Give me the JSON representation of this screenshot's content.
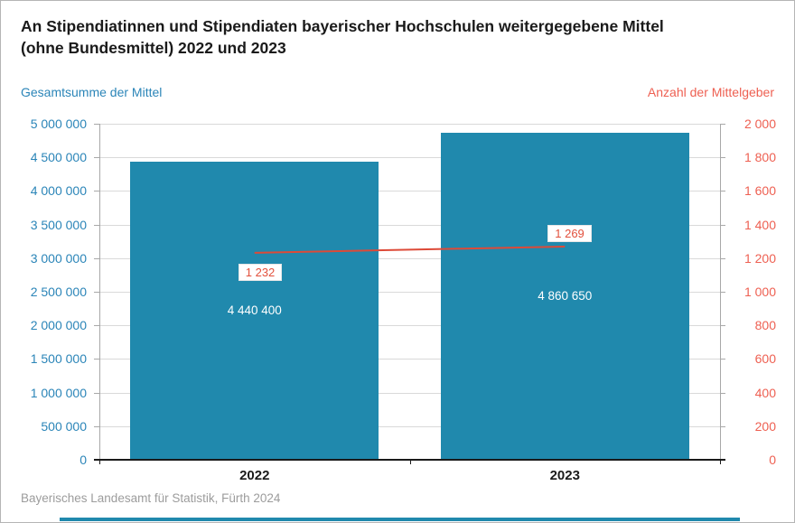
{
  "chart_data": {
    "type": "bar+line",
    "title": "An Stipendiatinnen und Stipendiaten bayerischer Hochschulen weitergegebene Mittel (ohne Bundesmittel) 2022 und 2023",
    "title_lines": [
      "An Stipendiatinnen und Stipendiaten bayerischer Hochschulen weitergegebene Mittel",
      "(ohne Bundesmittel) 2022 und 2023"
    ],
    "categories": [
      "2022",
      "2023"
    ],
    "series": [
      {
        "name": "Gesamtsumme der Mittel",
        "type": "bar",
        "axis": "left",
        "values": [
          4440400,
          4860650
        ],
        "labels": [
          "4 440 400",
          "4 860 650"
        ],
        "color": "#2089AD"
      },
      {
        "name": "Anzahl der Mittelgeber",
        "type": "line",
        "axis": "right",
        "values": [
          1232,
          1269
        ],
        "labels": [
          "1 232",
          "1 269"
        ],
        "color": "#DD4A38",
        "label_color": "#E2503C"
      }
    ],
    "left_axis": {
      "label": "Gesamtsumme der Mittel",
      "min": 0,
      "max": 5000000,
      "step": 500000,
      "ticks": [
        "5 000 000",
        "4 500 000",
        "4 000 000",
        "3 500 000",
        "3 000 000",
        "2 500 000",
        "2 000 000",
        "1 500 000",
        "1 000 000",
        "500 000",
        "0"
      ],
      "color": "#2B85B8"
    },
    "right_axis": {
      "label": "Anzahl der Mittelgeber",
      "min": 0,
      "max": 2000,
      "step": 200,
      "ticks": [
        "2 000",
        "1 800",
        "1 600",
        "1 400",
        "1 200",
        "1 000",
        "800",
        "600",
        "400",
        "200",
        "0"
      ],
      "color": "#EE6052"
    },
    "grid": true,
    "legend_position": "top",
    "source": "Bayerisches Landesamt für Statistik, Fürth 2024"
  }
}
